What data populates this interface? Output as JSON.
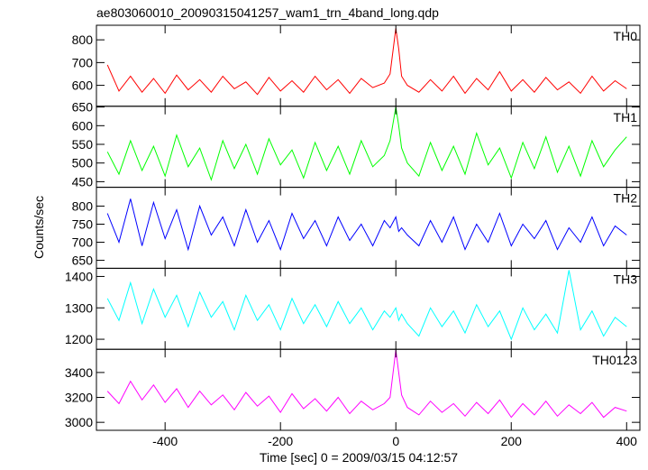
{
  "chart_data": {
    "type": "line",
    "title": "ae803060010_20090315041257_wam1_trn_4band_long.qdp",
    "xlabel": "Time [sec] 0 = 2009/03/15 04:12:57",
    "ylabel": "Counts/sec",
    "xlim": [
      -519,
      423
    ],
    "xticks": [
      -400,
      -200,
      0,
      200,
      400
    ],
    "x": [
      -500,
      -480,
      -460,
      -440,
      -420,
      -400,
      -380,
      -360,
      -340,
      -320,
      -300,
      -280,
      -260,
      -240,
      -220,
      -200,
      -180,
      -160,
      -140,
      -120,
      -100,
      -80,
      -60,
      -40,
      -20,
      -10,
      0,
      5,
      10,
      20,
      40,
      60,
      80,
      100,
      120,
      140,
      160,
      180,
      200,
      220,
      240,
      260,
      280,
      300,
      320,
      340,
      360,
      380,
      400
    ],
    "series": [
      {
        "name": "TH0",
        "color": "#ff0000",
        "ylim": [
          508,
          864
        ],
        "yticks": [
          600,
          700,
          800
        ],
        "values": [
          690,
          575,
          640,
          570,
          630,
          565,
          645,
          580,
          625,
          570,
          640,
          585,
          615,
          560,
          635,
          575,
          620,
          570,
          640,
          580,
          625,
          565,
          630,
          590,
          610,
          650,
          850,
          760,
          640,
          600,
          570,
          625,
          575,
          640,
          565,
          630,
          580,
          660,
          575,
          625,
          570,
          635,
          580,
          615,
          565,
          640,
          575,
          620,
          585
        ]
      },
      {
        "name": "TH1",
        "color": "#00ff00",
        "ylim": [
          435,
          652
        ],
        "yticks": [
          450,
          500,
          550,
          600,
          650
        ],
        "values": [
          530,
          470,
          560,
          480,
          545,
          465,
          575,
          490,
          540,
          455,
          560,
          485,
          550,
          470,
          565,
          495,
          535,
          460,
          555,
          480,
          545,
          470,
          560,
          490,
          520,
          560,
          650,
          600,
          540,
          500,
          465,
          555,
          480,
          545,
          470,
          580,
          495,
          540,
          460,
          555,
          485,
          570,
          475,
          545,
          465,
          560,
          490,
          535,
          570
        ]
      },
      {
        "name": "TH2",
        "color": "#0000ff",
        "ylim": [
          628,
          852
        ],
        "yticks": [
          650,
          700,
          750,
          800
        ],
        "values": [
          780,
          700,
          820,
          690,
          810,
          710,
          790,
          680,
          800,
          720,
          770,
          690,
          790,
          700,
          760,
          680,
          780,
          710,
          760,
          690,
          770,
          705,
          750,
          690,
          760,
          740,
          770,
          730,
          740,
          720,
          690,
          760,
          700,
          770,
          680,
          750,
          700,
          780,
          690,
          750,
          710,
          760,
          680,
          740,
          700,
          770,
          690,
          745,
          720
        ]
      },
      {
        "name": "TH3",
        "color": "#00ffff",
        "ylim": [
          1168,
          1426
        ],
        "yticks": [
          1200,
          1300,
          1400
        ],
        "values": [
          1330,
          1260,
          1380,
          1250,
          1360,
          1270,
          1340,
          1240,
          1350,
          1270,
          1320,
          1230,
          1340,
          1260,
          1310,
          1230,
          1330,
          1250,
          1310,
          1240,
          1320,
          1250,
          1300,
          1230,
          1290,
          1270,
          1300,
          1260,
          1280,
          1250,
          1210,
          1300,
          1240,
          1290,
          1220,
          1310,
          1240,
          1290,
          1200,
          1300,
          1230,
          1280,
          1220,
          1420,
          1230,
          1290,
          1210,
          1270,
          1240
        ]
      },
      {
        "name": "TH0123",
        "color": "#ff00ff",
        "ylim": [
          2936,
          3586
        ],
        "yticks": [
          3000,
          3200,
          3400
        ],
        "values": [
          3250,
          3150,
          3330,
          3180,
          3300,
          3160,
          3270,
          3120,
          3250,
          3140,
          3220,
          3100,
          3240,
          3130,
          3210,
          3080,
          3230,
          3110,
          3190,
          3090,
          3200,
          3070,
          3170,
          3100,
          3150,
          3200,
          3580,
          3400,
          3220,
          3120,
          3060,
          3170,
          3080,
          3150,
          3050,
          3160,
          3070,
          3180,
          3040,
          3150,
          3060,
          3170,
          3050,
          3140,
          3070,
          3160,
          3040,
          3120,
          3090
        ]
      }
    ]
  }
}
